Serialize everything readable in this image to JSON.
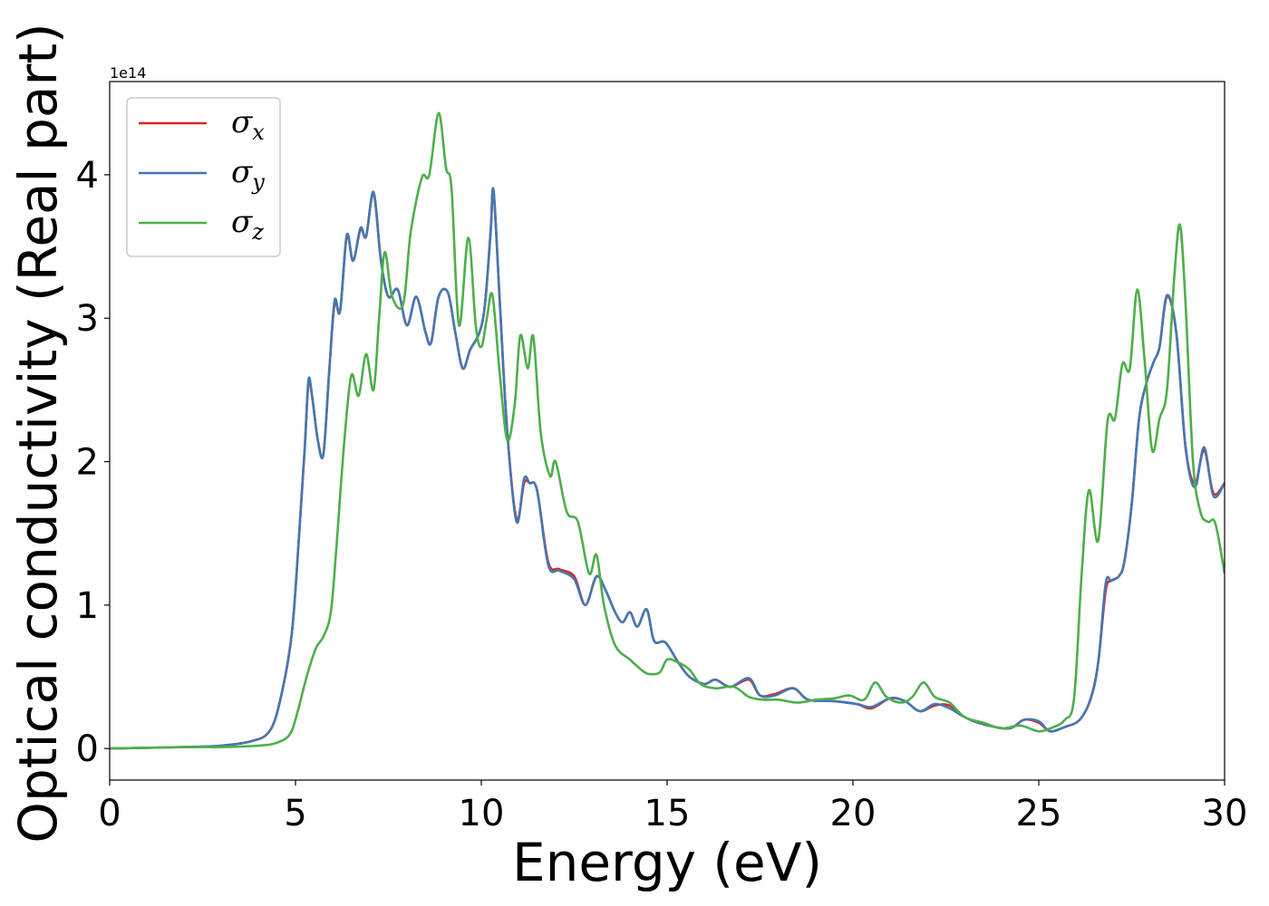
{
  "chart_data": {
    "type": "line",
    "xlabel": "Energy (eV)",
    "ylabel": "Optical conductivity (Real part)",
    "y_offset_label": "1e14",
    "xlim": [
      0,
      30
    ],
    "ylim": [
      -0.22,
      4.65
    ],
    "x_ticks": [
      0,
      5,
      10,
      15,
      20,
      25,
      30
    ],
    "y_ticks": [
      0,
      1,
      2,
      3,
      4
    ],
    "grid": false,
    "legend_position": "top-left",
    "series": [
      {
        "name": "σx",
        "symbol": "σ",
        "subscript": "x",
        "color": "#d62728",
        "points": [
          [
            0,
            0
          ],
          [
            2,
            0.01
          ],
          [
            3,
            0.02
          ],
          [
            3.8,
            0.05
          ],
          [
            4.3,
            0.12
          ],
          [
            4.6,
            0.35
          ],
          [
            4.9,
            0.8
          ],
          [
            5.1,
            1.5
          ],
          [
            5.25,
            2.1
          ],
          [
            5.35,
            2.55
          ],
          [
            5.45,
            2.45
          ],
          [
            5.6,
            2.15
          ],
          [
            5.75,
            2.05
          ],
          [
            5.9,
            2.6
          ],
          [
            6.05,
            3.1
          ],
          [
            6.2,
            3.05
          ],
          [
            6.38,
            3.57
          ],
          [
            6.55,
            3.4
          ],
          [
            6.75,
            3.62
          ],
          [
            6.9,
            3.57
          ],
          [
            7.1,
            3.87
          ],
          [
            7.3,
            3.4
          ],
          [
            7.5,
            3.15
          ],
          [
            7.75,
            3.2
          ],
          [
            8.0,
            2.95
          ],
          [
            8.25,
            3.15
          ],
          [
            8.5,
            2.9
          ],
          [
            8.65,
            2.83
          ],
          [
            8.85,
            3.15
          ],
          [
            9.1,
            3.18
          ],
          [
            9.3,
            2.9
          ],
          [
            9.5,
            2.65
          ],
          [
            9.7,
            2.78
          ],
          [
            9.95,
            2.9
          ],
          [
            10.1,
            3.1
          ],
          [
            10.25,
            3.6
          ],
          [
            10.33,
            3.88
          ],
          [
            10.5,
            3.1
          ],
          [
            10.7,
            2.2
          ],
          [
            10.95,
            1.6
          ],
          [
            11.15,
            1.85
          ],
          [
            11.3,
            1.85
          ],
          [
            11.5,
            1.8
          ],
          [
            11.8,
            1.3
          ],
          [
            12.1,
            1.25
          ],
          [
            12.5,
            1.2
          ],
          [
            12.8,
            1.0
          ],
          [
            13.1,
            1.2
          ],
          [
            13.35,
            1.1
          ],
          [
            13.6,
            0.95
          ],
          [
            13.8,
            0.88
          ],
          [
            14.0,
            0.95
          ],
          [
            14.2,
            0.85
          ],
          [
            14.45,
            0.97
          ],
          [
            14.65,
            0.75
          ],
          [
            14.95,
            0.74
          ],
          [
            15.3,
            0.6
          ],
          [
            15.6,
            0.5
          ],
          [
            16.0,
            0.45
          ],
          [
            16.3,
            0.48
          ],
          [
            16.7,
            0.43
          ],
          [
            17.2,
            0.48
          ],
          [
            17.5,
            0.37
          ],
          [
            17.9,
            0.38
          ],
          [
            18.4,
            0.42
          ],
          [
            18.8,
            0.34
          ],
          [
            19.5,
            0.33
          ],
          [
            20.1,
            0.31
          ],
          [
            20.5,
            0.28
          ],
          [
            21.0,
            0.35
          ],
          [
            21.4,
            0.33
          ],
          [
            21.8,
            0.26
          ],
          [
            22.2,
            0.3
          ],
          [
            22.6,
            0.3
          ],
          [
            23.0,
            0.22
          ],
          [
            23.5,
            0.17
          ],
          [
            24.2,
            0.14
          ],
          [
            24.6,
            0.2
          ],
          [
            25.0,
            0.18
          ],
          [
            25.3,
            0.12
          ],
          [
            25.7,
            0.15
          ],
          [
            26.1,
            0.2
          ],
          [
            26.4,
            0.35
          ],
          [
            26.6,
            0.6
          ],
          [
            26.8,
            1.1
          ],
          [
            26.95,
            1.17
          ],
          [
            27.15,
            1.2
          ],
          [
            27.3,
            1.3
          ],
          [
            27.5,
            1.7
          ],
          [
            27.7,
            2.3
          ],
          [
            27.9,
            2.55
          ],
          [
            28.1,
            2.7
          ],
          [
            28.25,
            2.8
          ],
          [
            28.45,
            3.15
          ],
          [
            28.7,
            2.9
          ],
          [
            28.95,
            2.1
          ],
          [
            29.2,
            1.85
          ],
          [
            29.45,
            2.08
          ],
          [
            29.7,
            1.78
          ],
          [
            30.0,
            1.85
          ]
        ]
      },
      {
        "name": "σy",
        "symbol": "σ",
        "subscript": "y",
        "color": "#4478b2",
        "points": [
          [
            0,
            0
          ],
          [
            2,
            0.01
          ],
          [
            3,
            0.02
          ],
          [
            3.8,
            0.05
          ],
          [
            4.3,
            0.12
          ],
          [
            4.6,
            0.35
          ],
          [
            4.9,
            0.8
          ],
          [
            5.1,
            1.5
          ],
          [
            5.25,
            2.1
          ],
          [
            5.35,
            2.57
          ],
          [
            5.45,
            2.45
          ],
          [
            5.6,
            2.15
          ],
          [
            5.75,
            2.05
          ],
          [
            5.9,
            2.6
          ],
          [
            6.05,
            3.12
          ],
          [
            6.2,
            3.05
          ],
          [
            6.38,
            3.58
          ],
          [
            6.55,
            3.4
          ],
          [
            6.75,
            3.63
          ],
          [
            6.9,
            3.57
          ],
          [
            7.1,
            3.88
          ],
          [
            7.3,
            3.4
          ],
          [
            7.5,
            3.15
          ],
          [
            7.75,
            3.2
          ],
          [
            8.0,
            2.95
          ],
          [
            8.25,
            3.15
          ],
          [
            8.5,
            2.9
          ],
          [
            8.65,
            2.83
          ],
          [
            8.85,
            3.15
          ],
          [
            9.1,
            3.18
          ],
          [
            9.3,
            2.9
          ],
          [
            9.5,
            2.65
          ],
          [
            9.7,
            2.78
          ],
          [
            9.95,
            2.9
          ],
          [
            10.1,
            3.1
          ],
          [
            10.25,
            3.6
          ],
          [
            10.33,
            3.89
          ],
          [
            10.5,
            3.1
          ],
          [
            10.7,
            2.2
          ],
          [
            10.95,
            1.58
          ],
          [
            11.15,
            1.88
          ],
          [
            11.3,
            1.85
          ],
          [
            11.5,
            1.8
          ],
          [
            11.8,
            1.28
          ],
          [
            12.1,
            1.24
          ],
          [
            12.5,
            1.18
          ],
          [
            12.8,
            1.0
          ],
          [
            13.1,
            1.2
          ],
          [
            13.35,
            1.1
          ],
          [
            13.6,
            0.95
          ],
          [
            13.8,
            0.88
          ],
          [
            14.0,
            0.95
          ],
          [
            14.2,
            0.85
          ],
          [
            14.45,
            0.97
          ],
          [
            14.65,
            0.75
          ],
          [
            14.95,
            0.74
          ],
          [
            15.3,
            0.6
          ],
          [
            15.6,
            0.5
          ],
          [
            16.0,
            0.45
          ],
          [
            16.3,
            0.48
          ],
          [
            16.7,
            0.43
          ],
          [
            17.2,
            0.49
          ],
          [
            17.5,
            0.37
          ],
          [
            17.9,
            0.37
          ],
          [
            18.4,
            0.42
          ],
          [
            18.8,
            0.34
          ],
          [
            19.5,
            0.33
          ],
          [
            20.1,
            0.31
          ],
          [
            20.5,
            0.29
          ],
          [
            21.0,
            0.35
          ],
          [
            21.4,
            0.33
          ],
          [
            21.8,
            0.26
          ],
          [
            22.2,
            0.31
          ],
          [
            22.6,
            0.28
          ],
          [
            23.0,
            0.22
          ],
          [
            23.5,
            0.17
          ],
          [
            24.2,
            0.14
          ],
          [
            24.6,
            0.2
          ],
          [
            25.0,
            0.19
          ],
          [
            25.3,
            0.12
          ],
          [
            25.7,
            0.15
          ],
          [
            26.1,
            0.2
          ],
          [
            26.4,
            0.35
          ],
          [
            26.6,
            0.6
          ],
          [
            26.8,
            1.15
          ],
          [
            26.95,
            1.17
          ],
          [
            27.15,
            1.2
          ],
          [
            27.3,
            1.3
          ],
          [
            27.5,
            1.7
          ],
          [
            27.7,
            2.3
          ],
          [
            27.9,
            2.55
          ],
          [
            28.1,
            2.7
          ],
          [
            28.25,
            2.8
          ],
          [
            28.45,
            3.16
          ],
          [
            28.7,
            2.9
          ],
          [
            28.95,
            2.1
          ],
          [
            29.2,
            1.82
          ],
          [
            29.45,
            2.1
          ],
          [
            29.7,
            1.76
          ],
          [
            30.0,
            1.85
          ]
        ]
      },
      {
        "name": "σz",
        "symbol": "σ",
        "subscript": "z",
        "color": "#4daf4a",
        "points": [
          [
            0,
            0
          ],
          [
            2,
            0.01
          ],
          [
            3,
            0.01
          ],
          [
            4.0,
            0.02
          ],
          [
            4.5,
            0.04
          ],
          [
            4.85,
            0.1
          ],
          [
            5.05,
            0.25
          ],
          [
            5.3,
            0.5
          ],
          [
            5.55,
            0.7
          ],
          [
            5.75,
            0.78
          ],
          [
            5.95,
            0.95
          ],
          [
            6.1,
            1.4
          ],
          [
            6.3,
            2.1
          ],
          [
            6.5,
            2.6
          ],
          [
            6.7,
            2.46
          ],
          [
            6.9,
            2.75
          ],
          [
            7.1,
            2.5
          ],
          [
            7.25,
            3.0
          ],
          [
            7.4,
            3.46
          ],
          [
            7.6,
            3.15
          ],
          [
            7.9,
            3.1
          ],
          [
            8.1,
            3.6
          ],
          [
            8.4,
            3.98
          ],
          [
            8.6,
            4.0
          ],
          [
            8.85,
            4.43
          ],
          [
            9.05,
            4.05
          ],
          [
            9.2,
            3.9
          ],
          [
            9.4,
            2.95
          ],
          [
            9.65,
            3.56
          ],
          [
            9.85,
            2.95
          ],
          [
            10.0,
            2.8
          ],
          [
            10.15,
            3.0
          ],
          [
            10.3,
            3.16
          ],
          [
            10.5,
            2.6
          ],
          [
            10.7,
            2.15
          ],
          [
            10.9,
            2.4
          ],
          [
            11.05,
            2.88
          ],
          [
            11.25,
            2.65
          ],
          [
            11.4,
            2.87
          ],
          [
            11.6,
            2.2
          ],
          [
            11.85,
            1.9
          ],
          [
            12.0,
            2.0
          ],
          [
            12.3,
            1.65
          ],
          [
            12.6,
            1.58
          ],
          [
            12.9,
            1.22
          ],
          [
            13.1,
            1.35
          ],
          [
            13.3,
            1.0
          ],
          [
            13.6,
            0.72
          ],
          [
            14.0,
            0.62
          ],
          [
            14.3,
            0.55
          ],
          [
            14.5,
            0.52
          ],
          [
            14.8,
            0.53
          ],
          [
            15.0,
            0.62
          ],
          [
            15.3,
            0.6
          ],
          [
            15.6,
            0.55
          ],
          [
            15.9,
            0.45
          ],
          [
            16.3,
            0.42
          ],
          [
            16.8,
            0.43
          ],
          [
            17.2,
            0.36
          ],
          [
            17.6,
            0.34
          ],
          [
            18.0,
            0.34
          ],
          [
            18.5,
            0.32
          ],
          [
            19.0,
            0.34
          ],
          [
            19.5,
            0.35
          ],
          [
            19.9,
            0.37
          ],
          [
            20.3,
            0.34
          ],
          [
            20.6,
            0.46
          ],
          [
            20.9,
            0.36
          ],
          [
            21.3,
            0.32
          ],
          [
            21.6,
            0.36
          ],
          [
            21.9,
            0.46
          ],
          [
            22.2,
            0.36
          ],
          [
            22.6,
            0.32
          ],
          [
            23.0,
            0.22
          ],
          [
            23.5,
            0.18
          ],
          [
            24.0,
            0.14
          ],
          [
            24.5,
            0.16
          ],
          [
            25.0,
            0.12
          ],
          [
            25.4,
            0.15
          ],
          [
            25.7,
            0.2
          ],
          [
            25.95,
            0.35
          ],
          [
            26.15,
            1.2
          ],
          [
            26.35,
            1.8
          ],
          [
            26.6,
            1.45
          ],
          [
            26.85,
            2.28
          ],
          [
            27.05,
            2.3
          ],
          [
            27.25,
            2.68
          ],
          [
            27.45,
            2.65
          ],
          [
            27.65,
            3.2
          ],
          [
            27.85,
            2.7
          ],
          [
            28.05,
            2.08
          ],
          [
            28.25,
            2.3
          ],
          [
            28.45,
            2.5
          ],
          [
            28.65,
            3.3
          ],
          [
            28.8,
            3.65
          ],
          [
            28.95,
            3.1
          ],
          [
            29.15,
            2.0
          ],
          [
            29.35,
            1.65
          ],
          [
            29.55,
            1.58
          ],
          [
            29.75,
            1.57
          ],
          [
            30.0,
            1.22
          ]
        ]
      }
    ]
  }
}
